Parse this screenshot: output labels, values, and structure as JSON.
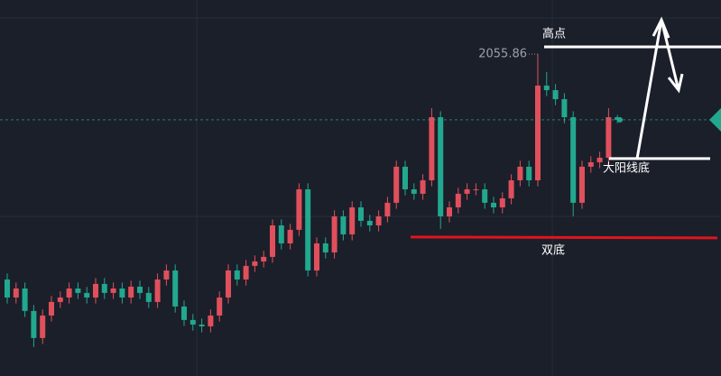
{
  "chart_data": {
    "type": "candlestick",
    "up_color": "#e0505c",
    "down_color": "#22a88f",
    "ylim": [
      1788.1,
      2100.9
    ],
    "series": {
      "open": [
        1868.4,
        1853.4,
        1860.9,
        1842.2,
        1819.7,
        1838.4,
        1849.7,
        1853.4,
        1860.9,
        1857.2,
        1853.4,
        1864.7,
        1857.2,
        1860.9,
        1853.4,
        1862.4,
        1857.2,
        1849.7,
        1868.4,
        1875.9,
        1845.9,
        1834.7,
        1830.9,
        1829.4,
        1838.4,
        1853.4,
        1875.9,
        1868.4,
        1879.7,
        1883.4,
        1887.2,
        1913.4,
        1898.4,
        1909.7,
        1943.4,
        1875.9,
        1898.4,
        1890.9,
        1920.9,
        1905.9,
        1928.4,
        1917.2,
        1913.4,
        1920.9,
        1932.2,
        1962.2,
        1943.4,
        1939.7,
        1950.9,
        2003.4,
        1920.9,
        1928.4,
        1939.7,
        1943.4,
        1943.4,
        1932.2,
        1928.4,
        1935.9,
        1950.9,
        1962.2,
        1950.9,
        2029.7,
        2025.9,
        2018.4,
        2003.4,
        1932.2,
        1962.2,
        1965.9,
        1969.7,
        2003.4
      ],
      "high": [
        1873.4,
        1865.9,
        1865.9,
        1847.2,
        1843.4,
        1854.7,
        1858.4,
        1865.9,
        1865.9,
        1862.2,
        1869.7,
        1869.7,
        1865.9,
        1865.9,
        1867.4,
        1867.4,
        1862.2,
        1873.4,
        1880.9,
        1880.9,
        1850.9,
        1839.7,
        1835.9,
        1843.4,
        1858.4,
        1880.9,
        1880.9,
        1884.7,
        1888.4,
        1892.2,
        1918.4,
        1918.4,
        1914.7,
        1948.4,
        1948.4,
        1903.4,
        1903.4,
        1925.9,
        1925.9,
        1933.4,
        1933.4,
        1922.2,
        1925.9,
        1937.2,
        1967.2,
        1967.2,
        1948.4,
        1955.9,
        2010.9,
        2008.4,
        1933.4,
        1944.7,
        1948.4,
        1948.4,
        1948.4,
        1937.2,
        1940.9,
        1955.9,
        1967.2,
        1967.2,
        2055.86,
        2040.9,
        2030.9,
        2023.4,
        2008.4,
        1967.2,
        1970.9,
        1974.7,
        2010.9,
        2005.2
      ],
      "low": [
        1848.4,
        1848.4,
        1837.2,
        1812.2,
        1814.7,
        1833.4,
        1844.7,
        1848.4,
        1852.2,
        1848.4,
        1848.4,
        1852.2,
        1852.2,
        1848.4,
        1848.4,
        1852.2,
        1844.7,
        1844.7,
        1863.4,
        1840.9,
        1829.7,
        1825.9,
        1824.4,
        1824.4,
        1833.4,
        1848.4,
        1863.4,
        1863.4,
        1874.7,
        1878.4,
        1882.2,
        1893.4,
        1893.4,
        1904.7,
        1870.9,
        1870.9,
        1885.9,
        1885.9,
        1900.9,
        1900.9,
        1912.2,
        1908.4,
        1908.4,
        1915.9,
        1927.2,
        1938.4,
        1934.7,
        1934.7,
        1945.9,
        1910.4,
        1915.9,
        1923.4,
        1934.7,
        1938.4,
        1927.2,
        1923.4,
        1923.4,
        1930.9,
        1945.9,
        1945.9,
        1945.9,
        2020.9,
        2013.4,
        1998.4,
        1920.9,
        1927.2,
        1957.2,
        1960.9,
        1964.7,
        1998.4
      ],
      "close": [
        1853.4,
        1860.9,
        1842.2,
        1819.7,
        1838.4,
        1849.7,
        1853.4,
        1860.9,
        1857.2,
        1853.4,
        1864.7,
        1857.2,
        1860.9,
        1853.4,
        1862.4,
        1857.2,
        1849.7,
        1868.4,
        1875.9,
        1845.9,
        1834.7,
        1830.9,
        1829.4,
        1838.4,
        1853.4,
        1875.9,
        1868.4,
        1879.7,
        1883.4,
        1887.2,
        1913.4,
        1898.4,
        1909.7,
        1943.4,
        1875.9,
        1898.4,
        1890.9,
        1920.9,
        1905.9,
        1928.4,
        1917.2,
        1913.4,
        1920.9,
        1932.2,
        1962.2,
        1943.4,
        1939.7,
        1950.9,
        2003.4,
        1920.9,
        1928.4,
        1939.7,
        1943.4,
        1943.4,
        1932.2,
        1928.4,
        1935.9,
        1950.9,
        1962.2,
        1950.9,
        2029.7,
        2025.9,
        2018.4,
        2003.4,
        1932.2,
        1962.2,
        1965.9,
        1969.7,
        2003.4,
        2001.2
      ]
    },
    "high_label": 2055.86,
    "last_price": 2001.2,
    "last_color": "#22a88f",
    "levels": [
      {
        "label": "高点",
        "value": 2061.9,
        "color": "#ffffff"
      },
      {
        "label": "大阳线底",
        "value": 1969.0,
        "color": "#ffffff"
      },
      {
        "label": "双底",
        "value": 1903.7,
        "color": "#e0141e"
      }
    ]
  }
}
